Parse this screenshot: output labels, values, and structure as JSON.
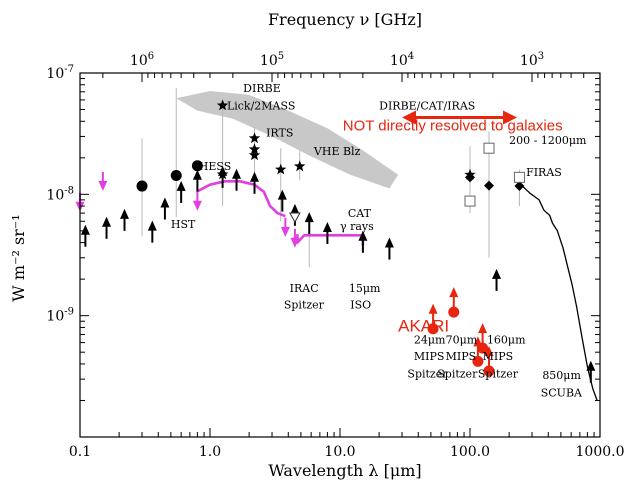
{
  "chart_data": {
    "type": "scatter",
    "xlabel": "Wavelength λ [μm]",
    "ylabel": "W m⁻² sr⁻¹",
    "top_axis_label": "Frequency ν [GHz]",
    "xscale": "log",
    "yscale": "log",
    "xlim": [
      0.1,
      1000
    ],
    "ylim": [
      1e-10,
      1e-07
    ],
    "x_ticks": [
      {
        "value": 0.1,
        "label": "0.1"
      },
      {
        "value": 1,
        "label": "1.0"
      },
      {
        "value": 10,
        "label": "10.0"
      },
      {
        "value": 100,
        "label": "100.0"
      },
      {
        "value": 1000,
        "label": "1000.0"
      }
    ],
    "y_ticks": [
      {
        "value": 1e-09,
        "base": "10",
        "exp": "-9"
      },
      {
        "value": 1e-08,
        "base": "10",
        "exp": "-8"
      },
      {
        "value": 1e-07,
        "base": "10",
        "exp": "-7"
      }
    ],
    "top_ticks": [
      {
        "wavelength": 0.3,
        "base": "10",
        "exp": "6"
      },
      {
        "wavelength": 3,
        "base": "10",
        "exp": "5"
      },
      {
        "wavelength": 30,
        "base": "10",
        "exp": "4"
      },
      {
        "wavelength": 300,
        "base": "10",
        "exp": "3"
      }
    ],
    "colors": {
      "magenta": "#e040e0",
      "red": "#e8250e",
      "grey_band": "#c8c8c8",
      "black": "#000000"
    },
    "series": [
      {
        "marker": "up-arrow",
        "points": [
          {
            "x": 0.11,
            "y": 3.7e-09
          },
          {
            "x": 0.16,
            "y": 4.3e-09
          },
          {
            "x": 0.22,
            "y": 5e-09
          },
          {
            "x": 0.36,
            "y": 4e-09
          },
          {
            "x": 0.45,
            "y": 6.2e-09
          },
          {
            "x": 0.6,
            "y": 8.5e-09
          },
          {
            "x": 0.8,
            "y": 1.05e-08
          },
          {
            "x": 1.25,
            "y": 1.13e-08
          },
          {
            "x": 1.6,
            "y": 1.07e-08
          },
          {
            "x": 2.2,
            "y": 1.01e-08
          },
          {
            "x": 3.6,
            "y": 7.2e-09
          },
          {
            "x": 4.5,
            "y": 5.5e-09
          },
          {
            "x": 5.8,
            "y": 4.7e-09
          },
          {
            "x": 8.0,
            "y": 3.9e-09
          },
          {
            "x": 15.0,
            "y": 3.3e-09
          },
          {
            "x": 24.0,
            "y": 2.9e-09
          },
          {
            "x": 160.0,
            "y": 1.6e-09
          },
          {
            "x": 850.0,
            "y": 2.8e-10
          }
        ]
      },
      {
        "marker": "filled-circle",
        "points": [
          {
            "x": 0.3,
            "y": 1.17e-08
          },
          {
            "x": 0.55,
            "y": 1.43e-08
          },
          {
            "x": 0.8,
            "y": 1.72e-08
          }
        ]
      },
      {
        "marker": "star",
        "points": [
          {
            "x": 1.25,
            "y": 5.4e-08
          },
          {
            "x": 1.25,
            "y": 1.46e-08
          },
          {
            "x": 2.2,
            "y": 2.9e-08
          },
          {
            "x": 2.2,
            "y": 2.35e-08
          },
          {
            "x": 2.2,
            "y": 2.1e-08
          },
          {
            "x": 3.5,
            "y": 1.6e-08
          },
          {
            "x": 4.9,
            "y": 1.7e-08
          },
          {
            "x": 100.0,
            "y": 1.45e-08
          }
        ]
      },
      {
        "marker": "diamond",
        "points": [
          {
            "x": 100.0,
            "y": 1.38e-08
          },
          {
            "x": 140.0,
            "y": 1.18e-08
          },
          {
            "x": 240.0,
            "y": 1.17e-08
          }
        ]
      },
      {
        "marker": "open-square",
        "points": [
          {
            "x": 140.0,
            "y": 2.4e-08
          },
          {
            "x": 240.0,
            "y": 1.38e-08
          },
          {
            "x": 100.0,
            "y": 8.8e-09
          }
        ]
      },
      {
        "marker": "open-triangle",
        "points": [
          {
            "x": 4.5,
            "y": 6.5e-09
          }
        ]
      },
      {
        "marker": "magenta-down-arrow",
        "points": [
          {
            "x": 0.1,
            "y": 1.03e-08
          },
          {
            "x": 0.15,
            "y": 1.53e-08
          },
          {
            "x": 0.8,
            "y": 1.05e-08
          },
          {
            "x": 3.8,
            "y": 6.4e-09
          },
          {
            "x": 4.5,
            "y": 5.2e-09
          }
        ]
      },
      {
        "marker": "red-filled-circle-up-arrow",
        "points": [
          {
            "x": 52.0,
            "y": 7.8e-10
          },
          {
            "x": 75.0,
            "y": 1.07e-09
          },
          {
            "x": 115.0,
            "y": 4.2e-10
          },
          {
            "x": 140.0,
            "y": 3.5e-10
          },
          {
            "x": 125.0,
            "y": 5.4e-10
          }
        ]
      }
    ],
    "lines": [
      {
        "name": "HESS",
        "color": "magenta",
        "points": [
          {
            "x": 0.8,
            "y": 1.06e-08
          },
          {
            "x": 1.0,
            "y": 1.2e-08
          },
          {
            "x": 1.3,
            "y": 1.28e-08
          },
          {
            "x": 1.7,
            "y": 1.28e-08
          },
          {
            "x": 2.2,
            "y": 1.2e-08
          },
          {
            "x": 2.6,
            "y": 1.05e-08
          },
          {
            "x": 2.9,
            "y": 8e-09
          },
          {
            "x": 3.3,
            "y": 7e-09
          },
          {
            "x": 3.8,
            "y": 6.6e-09
          }
        ]
      },
      {
        "name": "CAT",
        "color": "magenta",
        "points": [
          {
            "x": 4.7,
            "y": 4.7e-09
          },
          {
            "x": 4.7,
            "y": 4e-09
          },
          {
            "x": 5.3,
            "y": 4.6e-09
          },
          {
            "x": 8.0,
            "y": 4.6e-09
          },
          {
            "x": 15.0,
            "y": 4.6e-09
          },
          {
            "x": 15.0,
            "y": 3.8e-09
          }
        ]
      },
      {
        "name": "FIRAS",
        "color": "black",
        "points": [
          {
            "x": 240.0,
            "y": 1.23e-08
          },
          {
            "x": 290.0,
            "y": 1.02e-08
          },
          {
            "x": 340.0,
            "y": 9e-09
          },
          {
            "x": 370.0,
            "y": 7.4e-09
          },
          {
            "x": 410.0,
            "y": 6.7e-09
          },
          {
            "x": 430.0,
            "y": 5.8e-09
          },
          {
            "x": 470.0,
            "y": 5e-09
          },
          {
            "x": 520.0,
            "y": 3.6e-09
          },
          {
            "x": 560.0,
            "y": 2.6e-09
          },
          {
            "x": 610.0,
            "y": 1.8e-09
          },
          {
            "x": 660.0,
            "y": 1.2e-09
          },
          {
            "x": 730.0,
            "y": 6.5e-10
          },
          {
            "x": 800.0,
            "y": 3.8e-10
          },
          {
            "x": 880.0,
            "y": 2.5e-10
          },
          {
            "x": 950.0,
            "y": 2e-10
          }
        ]
      }
    ],
    "band": {
      "name": "VHE Blz",
      "points": [
        {
          "x": 0.55,
          "y": 6.2e-08
        },
        {
          "x": 1.0,
          "y": 7.1e-08
        },
        {
          "x": 2.0,
          "y": 6.6e-08
        },
        {
          "x": 4.0,
          "y": 4.9e-08
        },
        {
          "x": 8.0,
          "y": 3.5e-08
        },
        {
          "x": 15.0,
          "y": 2.3e-08
        },
        {
          "x": 28.0,
          "y": 1.45e-08
        },
        {
          "x": 24.0,
          "y": 1.12e-08
        },
        {
          "x": 12.0,
          "y": 1.45e-08
        },
        {
          "x": 6.0,
          "y": 2.05e-08
        },
        {
          "x": 3.0,
          "y": 3e-08
        },
        {
          "x": 1.5,
          "y": 4.2e-08
        },
        {
          "x": 0.8,
          "y": 4.9e-08
        }
      ]
    },
    "annotations": [
      {
        "text": "DIRBE",
        "x": 1.8,
        "y": 7e-08,
        "color": "black"
      },
      {
        "text": "Lick/2MASS",
        "x": 1.35,
        "y": 5e-08,
        "color": "black"
      },
      {
        "text": "IRTS",
        "x": 2.7,
        "y": 3e-08,
        "color": "black"
      },
      {
        "text": "VHE Blz",
        "x": 6.3,
        "y": 2.1e-08,
        "color": "black"
      },
      {
        "text": "HESS",
        "x": 0.82,
        "y": 1.58e-08,
        "color": "black"
      },
      {
        "text": "HST",
        "x": 0.5,
        "y": 5.3e-09,
        "color": "black"
      },
      {
        "text": "CAT",
        "x": 11.5,
        "y": 6.5e-09,
        "color": "black"
      },
      {
        "text": "γ rays",
        "x": 10.0,
        "y": 5.1e-09,
        "color": "black"
      },
      {
        "text": "IRAC",
        "x": 4.1,
        "y": 1.57e-09,
        "color": "black"
      },
      {
        "text": "Spitzer",
        "x": 3.7,
        "y": 1.15e-09,
        "color": "black"
      },
      {
        "text": "15μm",
        "x": 11.7,
        "y": 1.57e-09,
        "color": "black"
      },
      {
        "text": "ISO",
        "x": 12.0,
        "y": 1.15e-09,
        "color": "black"
      },
      {
        "text": "DIRBE/CAT/IRAS",
        "x": 20.0,
        "y": 5e-08,
        "color": "black"
      },
      {
        "text": "NOT directly resolved to galaxies",
        "x": 10.5,
        "y": 3.35e-08,
        "color": "red"
      },
      {
        "text": "200 - 1200μm",
        "x": 200.0,
        "y": 2.6e-08,
        "color": "black"
      },
      {
        "text": "FIRAS",
        "x": 270.0,
        "y": 1.42e-08,
        "color": "black"
      },
      {
        "text": "AKARI",
        "x": 28.0,
        "y": 7.4e-10,
        "color": "red"
      },
      {
        "text": "24μm",
        "x": 37.0,
        "y": 5.9e-10,
        "color": "black"
      },
      {
        "text": "MIPS",
        "x": 37.0,
        "y": 4.3e-10,
        "color": "black"
      },
      {
        "text": "Spitzer",
        "x": 33.0,
        "y": 3.1e-10,
        "color": "black"
      },
      {
        "text": "70μm",
        "x": 65.0,
        "y": 5.9e-10,
        "color": "black"
      },
      {
        "text": "MIPS",
        "x": 65.0,
        "y": 4.3e-10,
        "color": "black"
      },
      {
        "text": "Spitzer",
        "x": 56.0,
        "y": 3.1e-10,
        "color": "black"
      },
      {
        "text": "160μm",
        "x": 135.0,
        "y": 5.9e-10,
        "color": "black"
      },
      {
        "text": "MIPS",
        "x": 125.0,
        "y": 4.3e-10,
        "color": "black"
      },
      {
        "text": "Spitzer",
        "x": 115.0,
        "y": 3.1e-10,
        "color": "black"
      },
      {
        "text": "850μm",
        "x": 360.0,
        "y": 3e-10,
        "color": "black"
      },
      {
        "text": "SCUBA",
        "x": 350.0,
        "y": 2.15e-10,
        "color": "black"
      }
    ],
    "arrow_annotation": {
      "x_from": 30.0,
      "x_to": 230.0,
      "y": 4.3e-08,
      "color": "red"
    }
  }
}
